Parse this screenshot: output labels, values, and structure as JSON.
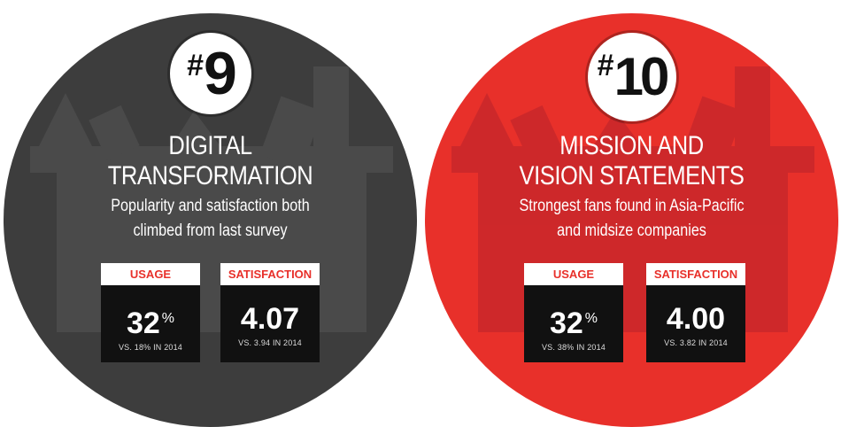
{
  "cards": [
    {
      "rank_symbol": "#",
      "rank_number": "9",
      "title_line1": "DIGITAL",
      "title_line2": "TRANSFORMATION",
      "subtitle_line1": "Popularity and satisfaction both",
      "subtitle_line2": "climbed from last survey",
      "usage": {
        "label": "USAGE",
        "value": "32",
        "unit": "%",
        "comparison": "VS. 18% IN 2014"
      },
      "satisfaction": {
        "label": "SATISFACTION",
        "value": "4.07",
        "comparison": "VS. 3.94 IN 2014"
      },
      "color": "#3d3d3d"
    },
    {
      "rank_symbol": "#",
      "rank_number": "10",
      "title_line1": "MISSION AND",
      "title_line2": "VISION STATEMENTS",
      "subtitle_line1": "Strongest fans found in Asia-Pacific",
      "subtitle_line2": "and midsize companies",
      "usage": {
        "label": "USAGE",
        "value": "32",
        "unit": "%",
        "comparison": "VS. 38% IN 2014"
      },
      "satisfaction": {
        "label": "SATISFACTION",
        "value": "4.00",
        "comparison": "VS. 3.82 IN 2014"
      },
      "color": "#e8302a"
    }
  ],
  "accent_color": "#e8302a",
  "watermark_icon": "toolbox-icon"
}
